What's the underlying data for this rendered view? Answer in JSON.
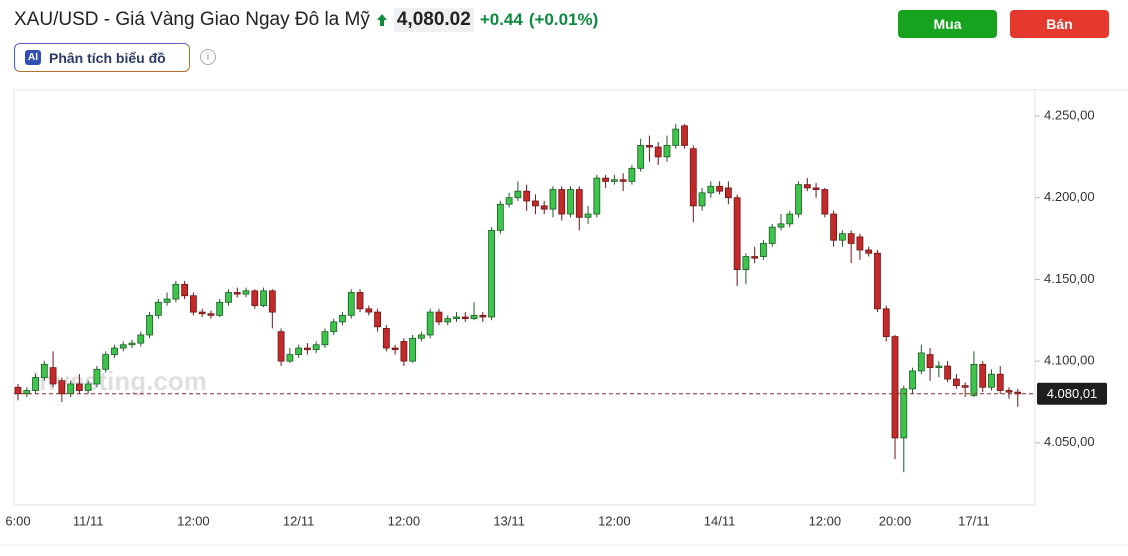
{
  "header": {
    "title": "XAU/USD - Giá Vàng Giao Ngay Đô la Mỹ",
    "price": "4,080.02",
    "change": "+0.44",
    "change_percent": "(+0.01%)",
    "buttons": {
      "buy": "Mua",
      "sell": "Bán"
    },
    "ai_button": {
      "badge": "AI",
      "label": "Phân tích biểu đồ"
    }
  },
  "chart_data": {
    "type": "candlestick",
    "watermark": "Investing.com",
    "categories": [
      "6:00",
      null,
      null,
      null,
      null,
      null,
      null,
      null,
      "11/11",
      null,
      null,
      null,
      null,
      null,
      null,
      null,
      null,
      null,
      null,
      null,
      "12:00",
      null,
      null,
      null,
      null,
      null,
      null,
      null,
      null,
      null,
      null,
      null,
      "12/11",
      null,
      null,
      null,
      null,
      null,
      null,
      null,
      null,
      null,
      null,
      null,
      "12:00",
      null,
      null,
      null,
      null,
      null,
      null,
      null,
      null,
      null,
      null,
      null,
      "13/11",
      null,
      null,
      null,
      null,
      null,
      null,
      null,
      null,
      null,
      null,
      null,
      "12:00",
      null,
      null,
      null,
      null,
      null,
      null,
      null,
      null,
      null,
      null,
      null,
      "14/11",
      null,
      null,
      null,
      null,
      null,
      null,
      null,
      null,
      null,
      null,
      null,
      "12:00",
      null,
      null,
      null,
      null,
      null,
      null,
      null,
      "20:00",
      null,
      null,
      null,
      null,
      null,
      null,
      null,
      null,
      "17/11",
      null,
      null,
      null,
      null,
      null
    ],
    "open": [
      4084,
      4080,
      4082,
      4090,
      4096,
      4088,
      4080,
      4086,
      4082,
      4086,
      4095,
      4104,
      4108,
      4110,
      4111,
      4116,
      4128,
      4136,
      4138,
      4147,
      4140,
      4130,
      4129,
      4128,
      4136,
      4142,
      4141,
      4143,
      4134,
      4143,
      4118,
      4100,
      4104,
      4108,
      4107,
      4110,
      4118,
      4124,
      4128,
      4142,
      4132,
      4130,
      4120,
      4108,
      4112,
      4100,
      4114,
      4116,
      4130,
      4124,
      4126,
      4127,
      4126,
      4128,
      4127,
      4180,
      4196,
      4200,
      4204,
      4198,
      4195,
      4193,
      4205,
      4190,
      4205,
      4188,
      4190,
      4212,
      4210,
      4211,
      4210,
      4218,
      4232,
      4231,
      4225,
      4232,
      4244,
      4230,
      4195,
      4203,
      4207,
      4206,
      4200,
      4156,
      4164,
      4164,
      4172,
      4182,
      4184,
      4190,
      4208,
      4206,
      4205,
      4190,
      4174,
      4178,
      4176,
      4168,
      4166,
      4132,
      4115,
      4053,
      4083,
      4094,
      4104,
      4096,
      4097,
      4089,
      4085,
      4079,
      4098,
      4084,
      4092,
      4082,
      4081
    ],
    "high": [
      4086,
      4084,
      4092,
      4100,
      4106,
      4090,
      4088,
      4092,
      4088,
      4097,
      4106,
      4110,
      4112,
      4113,
      4118,
      4130,
      4138,
      4142,
      4149,
      4149,
      4142,
      4132,
      4131,
      4138,
      4144,
      4145,
      4145,
      4144,
      4145,
      4144,
      4120,
      4108,
      4110,
      4111,
      4112,
      4120,
      4126,
      4130,
      4144,
      4144,
      4134,
      4132,
      4122,
      4110,
      4114,
      4116,
      4118,
      4132,
      4132,
      4128,
      4130,
      4130,
      4136,
      4130,
      4182,
      4198,
      4203,
      4210,
      4208,
      4202,
      4198,
      4207,
      4207,
      4207,
      4207,
      4195,
      4214,
      4214,
      4214,
      4215,
      4220,
      4236,
      4238,
      4234,
      4238,
      4245,
      4245,
      4232,
      4206,
      4210,
      4210,
      4210,
      4202,
      4166,
      4170,
      4174,
      4184,
      4190,
      4192,
      4210,
      4212,
      4209,
      4206,
      4192,
      4180,
      4180,
      4178,
      4170,
      4168,
      4134,
      4116,
      4085,
      4096,
      4110,
      4108,
      4100,
      4100,
      4092,
      4087,
      4106,
      4100,
      4095,
      4097,
      4084,
      4083
    ],
    "low": [
      4076,
      4078,
      4080,
      4088,
      4084,
      4075,
      4078,
      4080,
      4080,
      4084,
      4093,
      4102,
      4106,
      4108,
      4109,
      4114,
      4126,
      4134,
      4136,
      4138,
      4128,
      4127,
      4126,
      4127,
      4134,
      4139,
      4139,
      4132,
      4133,
      4120,
      4097,
      4099,
      4102,
      4104,
      4105,
      4108,
      4116,
      4122,
      4126,
      4130,
      4128,
      4118,
      4106,
      4104,
      4097,
      4099,
      4112,
      4114,
      4122,
      4122,
      4124,
      4124,
      4125,
      4124,
      4125,
      4178,
      4194,
      4198,
      4192,
      4190,
      4190,
      4188,
      4186,
      4188,
      4180,
      4184,
      4188,
      4206,
      4208,
      4204,
      4208,
      4216,
      4222,
      4220,
      4222,
      4230,
      4230,
      4185,
      4192,
      4200,
      4202,
      4196,
      4146,
      4147,
      4160,
      4162,
      4170,
      4180,
      4182,
      4188,
      4204,
      4200,
      4188,
      4170,
      4170,
      4160,
      4162,
      4164,
      4130,
      4112,
      4040,
      4032,
      4080,
      4092,
      4088,
      4090,
      4087,
      4083,
      4078,
      4078,
      4081,
      4082,
      4080,
      4077,
      4072
    ],
    "close": [
      4080,
      4082,
      4090,
      4098,
      4086,
      4080,
      4086,
      4082,
      4086,
      4095,
      4104,
      4108,
      4110,
      4111,
      4116,
      4128,
      4136,
      4138,
      4147,
      4140,
      4130,
      4129,
      4128,
      4136,
      4142,
      4141,
      4143,
      4134,
      4143,
      4130,
      4100,
      4104,
      4108,
      4107,
      4110,
      4118,
      4124,
      4128,
      4142,
      4132,
      4130,
      4121,
      4108,
      4107,
      4100,
      4114,
      4116,
      4130,
      4124,
      4126,
      4127,
      4126,
      4128,
      4127,
      4180,
      4196,
      4200,
      4204,
      4198,
      4195,
      4193,
      4205,
      4190,
      4205,
      4188,
      4190,
      4212,
      4210,
      4211,
      4210,
      4218,
      4232,
      4231,
      4225,
      4232,
      4242,
      4232,
      4195,
      4203,
      4207,
      4204,
      4200,
      4156,
      4164,
      4163,
      4172,
      4182,
      4184,
      4190,
      4208,
      4206,
      4205,
      4190,
      4174,
      4178,
      4172,
      4168,
      4166,
      4132,
      4115,
      4053,
      4083,
      4094,
      4105,
      4096,
      4097,
      4089,
      4085,
      4084,
      4098,
      4084,
      4092,
      4082,
      4081,
      4080
    ],
    "colors": {
      "up": "#3cc54a",
      "down": "#c42a2a",
      "up_border": "#1d5a26",
      "down_border": "#6a1616"
    },
    "ylim": [
      4015,
      4265
    ],
    "yticks": [
      {
        "value": 4050,
        "label": "4.050,00"
      },
      {
        "value": 4100,
        "label": "4.100,00"
      },
      {
        "value": 4150,
        "label": "4.150,00"
      },
      {
        "value": 4200,
        "label": "4.200,00"
      },
      {
        "value": 4250,
        "label": "4.250,00"
      }
    ],
    "last_price": {
      "value": 4080.01,
      "label": "4.080,01"
    },
    "grid": false
  }
}
